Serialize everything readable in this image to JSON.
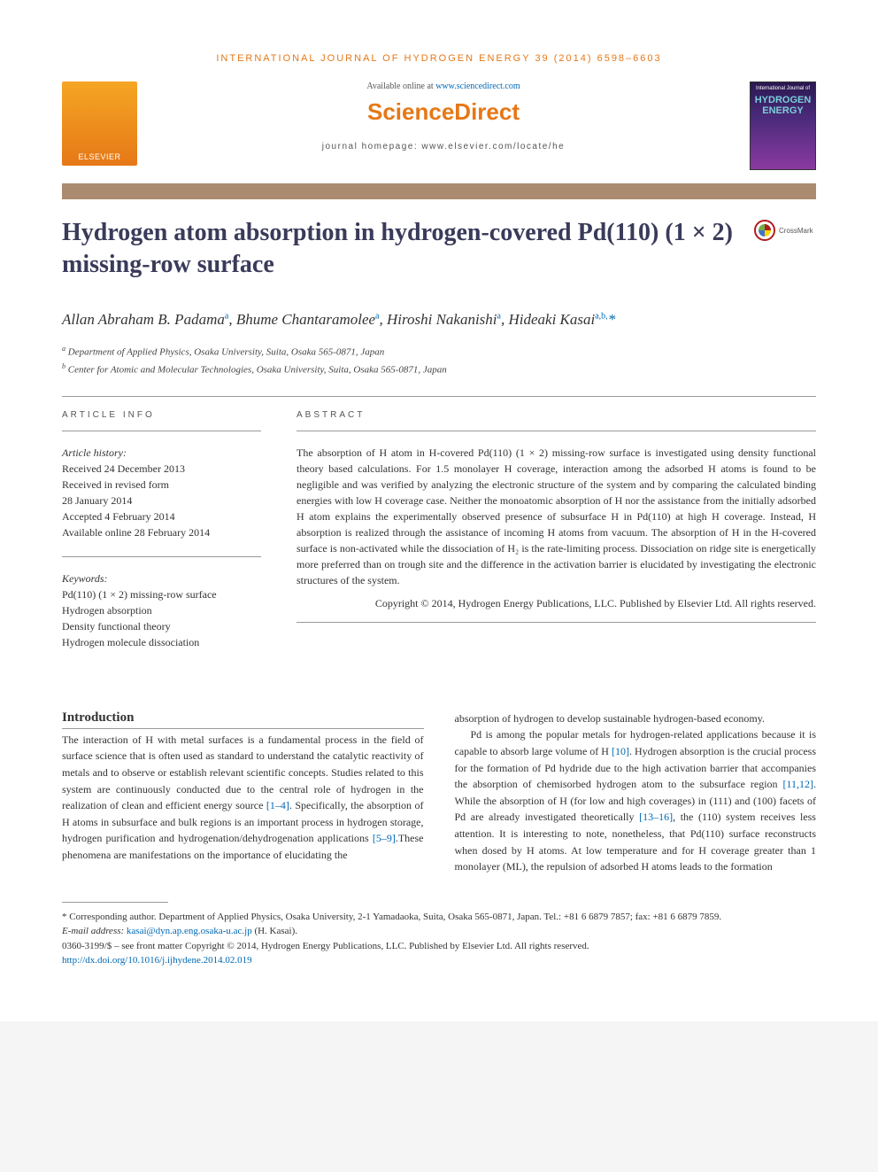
{
  "journal_header": "INTERNATIONAL JOURNAL OF HYDROGEN ENERGY 39 (2014) 6598–6603",
  "header": {
    "elsevier": "ELSEVIER",
    "available": "Available online at ",
    "available_link": "www.sciencedirect.com",
    "sciencedirect": "ScienceDirect",
    "homepage": "journal homepage: www.elsevier.com/locate/he",
    "cover_toplabel": "International Journal of",
    "cover_hydrogen": "HYDROGEN",
    "cover_energy": "ENERGY"
  },
  "title": "Hydrogen atom absorption in hydrogen-covered Pd(110) (1 × 2) missing-row surface",
  "crossmark": "CrossMark",
  "authors_html": "Allan Abraham B. Padama<sup>a</sup>, Bhume Chantaramolee<sup>a</sup>, Hiroshi Nakanishi<sup>a</sup>, Hideaki Kasai<sup>a,b,</sup><span class='star'>*</span>",
  "affiliations": {
    "a": "Department of Applied Physics, Osaka University, Suita, Osaka 565-0871, Japan",
    "b": "Center for Atomic and Molecular Technologies, Osaka University, Suita, Osaka 565-0871, Japan"
  },
  "article_info_label": "ARTICLE INFO",
  "history_label": "Article history:",
  "history": {
    "received": "Received 24 December 2013",
    "revised": "Received in revised form",
    "revised_date": "28 January 2014",
    "accepted": "Accepted 4 February 2014",
    "online": "Available online 28 February 2014"
  },
  "keywords_label": "Keywords:",
  "keywords": {
    "k1": "Pd(110) (1 × 2) missing-row surface",
    "k2": "Hydrogen absorption",
    "k3": "Density functional theory",
    "k4": "Hydrogen molecule dissociation"
  },
  "abstract_label": "ABSTRACT",
  "abstract_text": "The absorption of H atom in H-covered Pd(110) (1 × 2) missing-row surface is investigated using density functional theory based calculations. For 1.5 monolayer H coverage, interaction among the adsorbed H atoms is found to be negligible and was verified by analyzing the electronic structure of the system and by comparing the calculated binding energies with low H coverage case. Neither the monoatomic absorption of H nor the assistance from the initially adsorbed H atom explains the experimentally observed presence of subsurface H in Pd(110) at high H coverage. Instead, H absorption is realized through the assistance of incoming H atoms from vacuum. The absorption of H in the H-covered surface is non-activated while the dissociation of H₂ is the rate-limiting process. Dissociation on ridge site is energetically more preferred than on trough site and the difference in the activation barrier is elucidated by investigating the electronic structures of the system.",
  "copyright": "Copyright © 2014, Hydrogen Energy Publications, LLC. Published by Elsevier Ltd. All rights reserved.",
  "intro_heading": "Introduction",
  "intro_p1_pre": "The interaction of H with metal surfaces is a fundamental process in the field of surface science that is often used as standard to understand the catalytic reactivity of metals and to observe or establish relevant scientific concepts. Studies related to this system are continuously conducted due to the central role of hydrogen in the realization of clean and efficient energy source ",
  "intro_ref1": "[1–4]",
  "intro_p1_mid": ". Specifically, the absorption of H atoms in subsurface and bulk regions is an important process in hydrogen storage, hydrogen purification and hydrogenation/dehydrogenation applications ",
  "intro_ref2": "[5–9]",
  "intro_p1_post": ".These phenomena are manifestations on the importance of elucidating the ",
  "col2_p1": "absorption of hydrogen to develop sustainable hydrogen-based economy.",
  "col2_p2_pre": "Pd is among the popular metals for hydrogen-related applications because it is capable to absorb large volume of H ",
  "col2_ref3": "[10]",
  "col2_p2_mid1": ". Hydrogen absorption is the crucial process for the formation of Pd hydride due to the high activation barrier that accompanies the absorption of chemisorbed hydrogen atom to the subsurface region ",
  "col2_ref4": "[11,12]",
  "col2_p2_mid2": ". While the absorption of H (for low and high coverages) in (111) and (100) facets of Pd are already investigated theoretically ",
  "col2_ref5": "[13–16]",
  "col2_p2_post": ", the (110) system receives less attention. It is interesting to note, nonetheless, that Pd(110) surface reconstructs when dosed by H atoms. At low temperature and for H coverage greater than 1 monolayer (ML), the repulsion of adsorbed H atoms leads to the formation",
  "footnotes": {
    "corresponding": "* Corresponding author. Department of Applied Physics, Osaka University, 2-1 Yamadaoka, Suita, Osaka 565-0871, Japan. Tel.: +81 6 6879 7857; fax: +81 6 6879 7859.",
    "email_label": "E-mail address: ",
    "email": "kasai@dyn.ap.eng.osaka-u.ac.jp",
    "email_suffix": " (H. Kasai).",
    "issn": "0360-3199/$ – see front matter Copyright © 2014, Hydrogen Energy Publications, LLC. Published by Elsevier Ltd. All rights reserved.",
    "doi": "http://dx.doi.org/10.1016/j.ijhydene.2014.02.019"
  },
  "colors": {
    "orange": "#e67817",
    "link": "#0068b3",
    "bar": "#ab8b6f",
    "title": "#3a3a5a"
  }
}
